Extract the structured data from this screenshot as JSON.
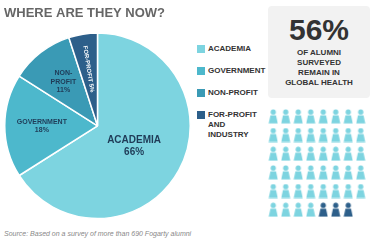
{
  "chart_data": [
    {
      "type": "pie",
      "title": "WHERE ARE THEY NOW?",
      "categories": [
        "ACADEMIA",
        "GOVERNMENT",
        "NON-PROFIT",
        "FOR-PROFIT\nAND INDUSTRY"
      ],
      "values": [
        66,
        18,
        11,
        5
      ],
      "value_labels": [
        "ACADEMIA\n66%",
        "GOVERNMENT\n18%",
        "NON-\nPROFIT\n11%",
        "FOR-PROFIT 5%"
      ],
      "data_labels": true,
      "colors": [
        "#7dd4e0",
        "#4db8cc",
        "#3a9ab5",
        "#2d5f8a"
      ],
      "legend": "right",
      "annotations": [
        "56%",
        "OF ALUMNI\nSURVEYED\nREMAIN IN\nGLOBAL HEALTH",
        "Source: Based on a survey of more than 690 Fogarty alumni"
      ]
    },
    {
      "type": "pictogram",
      "values": [
        44,
        3
      ],
      "colors": [
        "#7dd4e0",
        "#2d5f8a"
      ]
    }
  ]
}
